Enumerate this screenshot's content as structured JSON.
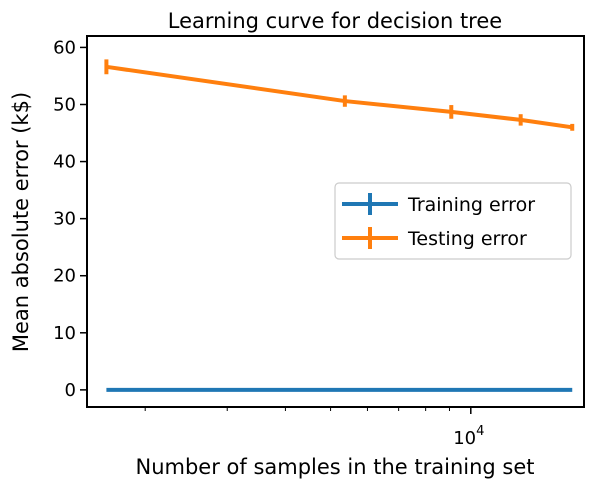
{
  "chart_data": {
    "type": "line",
    "title": "Learning curve for decision tree",
    "xlabel": "Number of samples in the training set",
    "ylabel": "Mean absolute error (k$)",
    "xscale": "log",
    "xlim": [
      1500,
      17500
    ],
    "ylim": [
      -3,
      62
    ],
    "yticks": [
      0,
      10,
      20,
      30,
      40,
      50,
      60
    ],
    "xtick_labels": [
      {
        "value": 10000,
        "base": "10",
        "exponent": "4"
      }
    ],
    "grid": false,
    "legend_position": "center-right",
    "x": [
      1651,
      5366,
      9081,
      12796,
      16512
    ],
    "series": [
      {
        "name": "Training error",
        "color": "#1f77b4",
        "values": [
          0,
          0,
          0,
          0,
          0
        ],
        "errors": [
          0,
          0,
          0,
          0,
          0
        ]
      },
      {
        "name": "Testing error",
        "color": "#ff7f0e",
        "values": [
          56.6,
          50.6,
          48.7,
          47.3,
          46.0
        ],
        "errors": [
          1.3,
          1.0,
          1.2,
          1.0,
          0.6
        ]
      }
    ]
  }
}
